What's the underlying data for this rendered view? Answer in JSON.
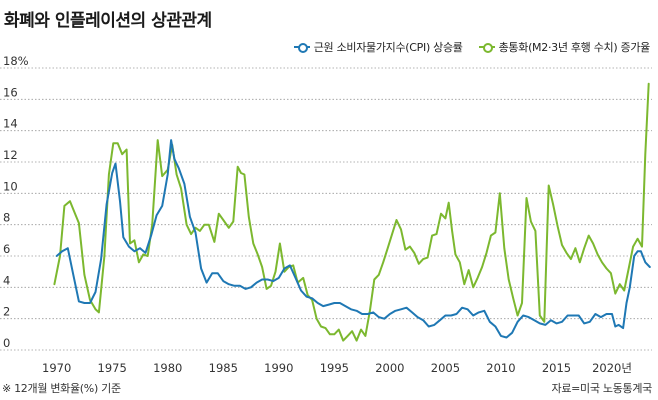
{
  "title": "화폐와 인플레이션의 상관관계",
  "source": "자료=미국 노동통계국",
  "note": "※ 12개월 변화율(%) 기준",
  "chart_data": {
    "type": "line",
    "title": "화폐와 인플레이션의 상관관계",
    "xlabel": "",
    "ylabel": "",
    "xlim": [
      1968.5,
      2023.6
    ],
    "ylim": [
      0,
      18
    ],
    "y_unit_label": "18%",
    "y_ticks": [
      0,
      2,
      4,
      6,
      8,
      10,
      12,
      14,
      16,
      18
    ],
    "y_tick_labels": [
      "0",
      "2",
      "4",
      "6",
      "8",
      "10",
      "12",
      "14",
      "16",
      "18%"
    ],
    "x_ticks": [
      1970,
      1975,
      1980,
      1985,
      1990,
      1995,
      2000,
      2005,
      2010,
      2015,
      2020
    ],
    "x_tick_labels": [
      "1970",
      "1975",
      "1980",
      "1985",
      "1990",
      "1995",
      "2000",
      "2005",
      "2010",
      "2015",
      "2020년"
    ],
    "grid": "horizontal-dotted",
    "legend_position": "top-right",
    "series": [
      {
        "name": "근원 소비자물가지수(CPI) 상승률",
        "color": "#1f78b4",
        "points": [
          [
            1970,
            6.0
          ],
          [
            1970.5,
            6.3
          ],
          [
            1971,
            6.5
          ],
          [
            1971.5,
            4.8
          ],
          [
            1972,
            3.1
          ],
          [
            1972.5,
            3.0
          ],
          [
            1973,
            3.0
          ],
          [
            1973.5,
            3.7
          ],
          [
            1974,
            5.8
          ],
          [
            1974.5,
            9.3
          ],
          [
            1975,
            11.3
          ],
          [
            1975.3,
            11.9
          ],
          [
            1975.7,
            9.5
          ],
          [
            1976,
            7.2
          ],
          [
            1976.5,
            6.6
          ],
          [
            1977,
            6.3
          ],
          [
            1977.5,
            6.5
          ],
          [
            1978,
            6.2
          ],
          [
            1978.5,
            7.3
          ],
          [
            1979,
            8.6
          ],
          [
            1979.5,
            9.2
          ],
          [
            1980,
            11.2
          ],
          [
            1980.3,
            13.4
          ],
          [
            1980.6,
            12.2
          ],
          [
            1981,
            11.6
          ],
          [
            1981.5,
            10.6
          ],
          [
            1982,
            8.5
          ],
          [
            1982.5,
            7.5
          ],
          [
            1983,
            5.2
          ],
          [
            1983.5,
            4.3
          ],
          [
            1984,
            4.9
          ],
          [
            1984.5,
            4.9
          ],
          [
            1985,
            4.4
          ],
          [
            1985.5,
            4.2
          ],
          [
            1986,
            4.1
          ],
          [
            1986.5,
            4.1
          ],
          [
            1987,
            3.9
          ],
          [
            1987.5,
            4.0
          ],
          [
            1988,
            4.3
          ],
          [
            1988.5,
            4.5
          ],
          [
            1989,
            4.5
          ],
          [
            1989.5,
            4.4
          ],
          [
            1990,
            4.6
          ],
          [
            1990.5,
            5.2
          ],
          [
            1991,
            5.4
          ],
          [
            1991.5,
            4.6
          ],
          [
            1992,
            3.8
          ],
          [
            1992.5,
            3.4
          ],
          [
            1993,
            3.3
          ],
          [
            1993.5,
            3.0
          ],
          [
            1994,
            2.8
          ],
          [
            1994.5,
            2.9
          ],
          [
            1995,
            3.0
          ],
          [
            1995.5,
            3.0
          ],
          [
            1996,
            2.8
          ],
          [
            1996.5,
            2.6
          ],
          [
            1997,
            2.5
          ],
          [
            1997.5,
            2.3
          ],
          [
            1998,
            2.3
          ],
          [
            1998.5,
            2.4
          ],
          [
            1999,
            2.1
          ],
          [
            1999.5,
            2.0
          ],
          [
            2000,
            2.3
          ],
          [
            2000.5,
            2.5
          ],
          [
            2001,
            2.6
          ],
          [
            2001.5,
            2.7
          ],
          [
            2002,
            2.4
          ],
          [
            2002.5,
            2.1
          ],
          [
            2003,
            1.9
          ],
          [
            2003.5,
            1.5
          ],
          [
            2004,
            1.6
          ],
          [
            2004.5,
            1.9
          ],
          [
            2005,
            2.2
          ],
          [
            2005.5,
            2.2
          ],
          [
            2006,
            2.3
          ],
          [
            2006.5,
            2.7
          ],
          [
            2007,
            2.6
          ],
          [
            2007.5,
            2.2
          ],
          [
            2008,
            2.4
          ],
          [
            2008.5,
            2.5
          ],
          [
            2009,
            1.8
          ],
          [
            2009.5,
            1.5
          ],
          [
            2010,
            0.9
          ],
          [
            2010.5,
            0.8
          ],
          [
            2011,
            1.1
          ],
          [
            2011.5,
            1.8
          ],
          [
            2012,
            2.2
          ],
          [
            2012.5,
            2.1
          ],
          [
            2013,
            1.9
          ],
          [
            2013.5,
            1.7
          ],
          [
            2014,
            1.6
          ],
          [
            2014.5,
            1.9
          ],
          [
            2015,
            1.7
          ],
          [
            2015.5,
            1.8
          ],
          [
            2016,
            2.2
          ],
          [
            2016.5,
            2.2
          ],
          [
            2017,
            2.2
          ],
          [
            2017.5,
            1.7
          ],
          [
            2018,
            1.8
          ],
          [
            2018.5,
            2.3
          ],
          [
            2019,
            2.1
          ],
          [
            2019.5,
            2.3
          ],
          [
            2020,
            2.3
          ],
          [
            2020.3,
            1.5
          ],
          [
            2020.6,
            1.6
          ],
          [
            2021,
            1.4
          ],
          [
            2021.3,
            3.0
          ],
          [
            2021.6,
            4.0
          ],
          [
            2022,
            6.0
          ],
          [
            2022.3,
            6.3
          ],
          [
            2022.6,
            6.3
          ],
          [
            2023,
            5.6
          ],
          [
            2023.4,
            5.3
          ]
        ]
      },
      {
        "name": "총통화(M2·3년 후행 수치) 증가율",
        "color": "#7cb82f",
        "points": [
          [
            1969.8,
            4.2
          ],
          [
            1970.3,
            6.0
          ],
          [
            1970.7,
            9.2
          ],
          [
            1971.2,
            9.5
          ],
          [
            1971.6,
            8.8
          ],
          [
            1972,
            8.1
          ],
          [
            1972.5,
            4.8
          ],
          [
            1973,
            3.2
          ],
          [
            1973.5,
            2.6
          ],
          [
            1973.8,
            2.4
          ],
          [
            1974.3,
            6.0
          ],
          [
            1974.7,
            11.2
          ],
          [
            1975.1,
            13.2
          ],
          [
            1975.5,
            13.2
          ],
          [
            1975.9,
            12.5
          ],
          [
            1976.3,
            12.8
          ],
          [
            1976.6,
            6.8
          ],
          [
            1977,
            7.0
          ],
          [
            1977.4,
            5.6
          ],
          [
            1977.8,
            6.1
          ],
          [
            1978.2,
            6.0
          ],
          [
            1978.6,
            8.0
          ],
          [
            1979.1,
            13.4
          ],
          [
            1979.5,
            11.1
          ],
          [
            1980,
            11.5
          ],
          [
            1980.4,
            13.1
          ],
          [
            1980.8,
            11.2
          ],
          [
            1981.2,
            10.3
          ],
          [
            1981.7,
            8.0
          ],
          [
            1982.1,
            7.4
          ],
          [
            1982.5,
            7.8
          ],
          [
            1982.9,
            7.6
          ],
          [
            1983.3,
            8.0
          ],
          [
            1983.7,
            8.0
          ],
          [
            1984.2,
            6.9
          ],
          [
            1984.6,
            8.7
          ],
          [
            1985,
            8.3
          ],
          [
            1985.5,
            7.8
          ],
          [
            1985.9,
            8.2
          ],
          [
            1986.3,
            11.7
          ],
          [
            1986.6,
            11.3
          ],
          [
            1986.9,
            11.2
          ],
          [
            1987.3,
            8.5
          ],
          [
            1987.7,
            6.8
          ],
          [
            1988.1,
            6.1
          ],
          [
            1988.5,
            5.3
          ],
          [
            1988.9,
            3.9
          ],
          [
            1989.3,
            4.1
          ],
          [
            1989.7,
            5.0
          ],
          [
            1990.1,
            6.8
          ],
          [
            1990.5,
            5.0
          ],
          [
            1990.9,
            5.3
          ],
          [
            1991.3,
            5.4
          ],
          [
            1991.7,
            4.3
          ],
          [
            1992.2,
            4.6
          ],
          [
            1992.6,
            3.5
          ],
          [
            1993,
            3.2
          ],
          [
            1993.4,
            2.0
          ],
          [
            1993.8,
            1.5
          ],
          [
            1994.2,
            1.4
          ],
          [
            1994.6,
            1.0
          ],
          [
            1995,
            1.0
          ],
          [
            1995.4,
            1.3
          ],
          [
            1995.8,
            0.6
          ],
          [
            1996.2,
            0.9
          ],
          [
            1996.6,
            1.2
          ],
          [
            1997,
            0.6
          ],
          [
            1997.4,
            1.3
          ],
          [
            1997.8,
            0.9
          ],
          [
            1998.2,
            2.5
          ],
          [
            1998.6,
            4.5
          ],
          [
            1999,
            4.8
          ],
          [
            1999.4,
            5.6
          ],
          [
            1999.8,
            6.5
          ],
          [
            2000.2,
            7.4
          ],
          [
            2000.6,
            8.3
          ],
          [
            2001,
            7.7
          ],
          [
            2001.4,
            6.4
          ],
          [
            2001.8,
            6.6
          ],
          [
            2002.2,
            6.2
          ],
          [
            2002.6,
            5.5
          ],
          [
            2003,
            5.8
          ],
          [
            2003.4,
            5.9
          ],
          [
            2003.8,
            7.3
          ],
          [
            2004.2,
            7.4
          ],
          [
            2004.6,
            8.7
          ],
          [
            2005,
            8.4
          ],
          [
            2005.3,
            9.4
          ],
          [
            2005.6,
            7.6
          ],
          [
            2005.9,
            6.1
          ],
          [
            2006.3,
            5.6
          ],
          [
            2006.7,
            4.2
          ],
          [
            2007.1,
            5.1
          ],
          [
            2007.5,
            4.0
          ],
          [
            2007.9,
            4.6
          ],
          [
            2008.3,
            5.3
          ],
          [
            2008.7,
            6.2
          ],
          [
            2009.1,
            7.3
          ],
          [
            2009.5,
            7.5
          ],
          [
            2009.9,
            10.0
          ],
          [
            2010.3,
            6.5
          ],
          [
            2010.7,
            4.5
          ],
          [
            2011.1,
            3.3
          ],
          [
            2011.5,
            2.2
          ],
          [
            2011.9,
            3.0
          ],
          [
            2012.3,
            9.7
          ],
          [
            2012.7,
            8.2
          ],
          [
            2013.1,
            7.6
          ],
          [
            2013.5,
            2.2
          ],
          [
            2013.9,
            1.8
          ],
          [
            2014.3,
            10.5
          ],
          [
            2014.7,
            9.3
          ],
          [
            2015.1,
            7.9
          ],
          [
            2015.5,
            6.7
          ],
          [
            2015.9,
            6.2
          ],
          [
            2016.3,
            5.8
          ],
          [
            2016.7,
            6.5
          ],
          [
            2017.1,
            5.6
          ],
          [
            2017.5,
            6.5
          ],
          [
            2017.9,
            7.3
          ],
          [
            2018.3,
            6.8
          ],
          [
            2018.7,
            6.1
          ],
          [
            2019.1,
            5.6
          ],
          [
            2019.5,
            5.2
          ],
          [
            2019.9,
            4.9
          ],
          [
            2020.3,
            3.6
          ],
          [
            2020.7,
            4.2
          ],
          [
            2021.1,
            3.8
          ],
          [
            2021.5,
            5.2
          ],
          [
            2021.9,
            6.6
          ],
          [
            2022.3,
            7.1
          ],
          [
            2022.7,
            6.6
          ],
          [
            2023,
            12.5
          ],
          [
            2023.3,
            17.0
          ]
        ]
      }
    ]
  }
}
